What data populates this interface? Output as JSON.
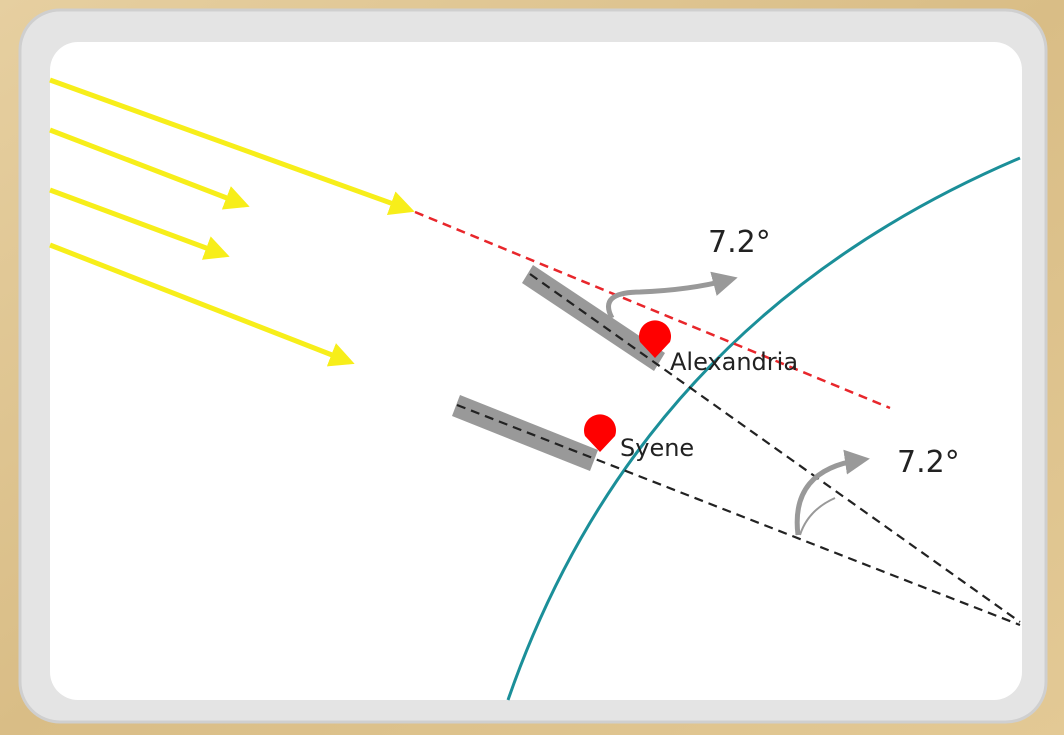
{
  "angle_labels": [
    "7.2°",
    "7.2°"
  ],
  "places": [
    "Alexandria",
    "Syene"
  ]
}
